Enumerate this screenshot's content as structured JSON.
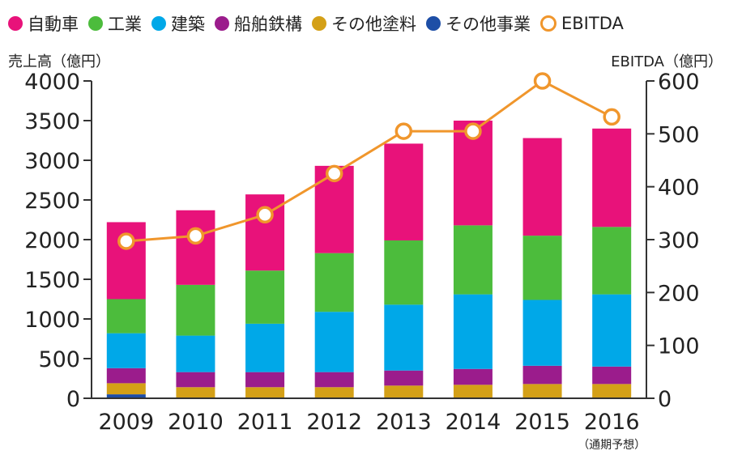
{
  "chart_data": {
    "type": "bar",
    "stacked": true,
    "categories": [
      "2009",
      "2010",
      "2011",
      "2012",
      "2013",
      "2014",
      "2015",
      "2016"
    ],
    "category_note": {
      "index": 7,
      "text": "（通期予想）"
    },
    "y_left": {
      "label": "売上高（億円）",
      "min": 0,
      "max": 4000,
      "ticks": [
        0,
        500,
        1000,
        1500,
        2000,
        2500,
        3000,
        3500,
        4000
      ]
    },
    "y_right": {
      "label": "EBITDA（億円）",
      "min": 0,
      "max": 600,
      "ticks": [
        0,
        100,
        200,
        300,
        400,
        500,
        600
      ]
    },
    "series": [
      {
        "name": "その他事業",
        "color": "#1d4ea6",
        "values": [
          50,
          10,
          10,
          10,
          10,
          10,
          10,
          10
        ]
      },
      {
        "name": "その他塗料",
        "color": "#d4a017",
        "values": [
          140,
          130,
          130,
          130,
          150,
          160,
          170,
          170
        ]
      },
      {
        "name": "船舶鉄構",
        "color": "#9b1c8c",
        "values": [
          190,
          190,
          190,
          190,
          190,
          200,
          230,
          220
        ]
      },
      {
        "name": "建築",
        "color": "#00a8e8",
        "values": [
          440,
          460,
          610,
          760,
          830,
          940,
          830,
          910
        ]
      },
      {
        "name": "工業",
        "color": "#4cbc3c",
        "values": [
          430,
          640,
          670,
          740,
          810,
          870,
          810,
          850
        ]
      },
      {
        "name": "自動車",
        "color": "#e8127a",
        "values": [
          970,
          940,
          960,
          1100,
          1220,
          1320,
          1230,
          1240
        ]
      }
    ],
    "line": {
      "name": "EBITDA",
      "color": "#f0962c",
      "axis": "right",
      "values": [
        297,
        307,
        347,
        425,
        505,
        505,
        600,
        532
      ]
    },
    "legend_order": [
      "自動車",
      "工業",
      "建築",
      "船舶鉄構",
      "その他塗料",
      "その他事業",
      "EBITDA"
    ],
    "grid": false,
    "legend_position": "top"
  }
}
